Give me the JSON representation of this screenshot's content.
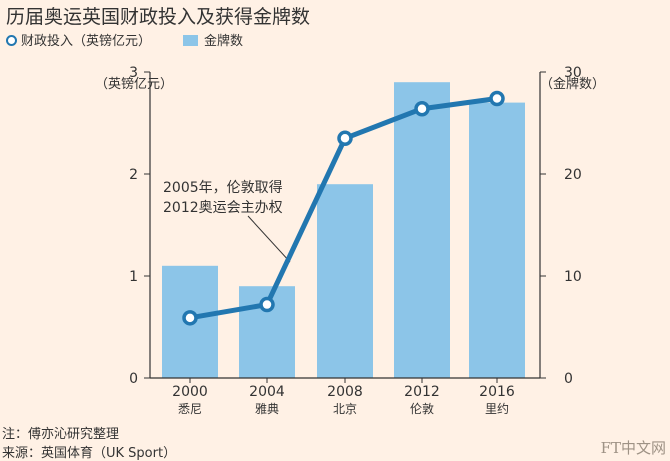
{
  "title": "历届奥运英国财政投入及获得金牌数",
  "legend": {
    "line_label": "财政投入（英镑亿元）",
    "bar_label": "金牌数"
  },
  "annotation": [
    "2005年，伦敦取得",
    "2012奥运会主办权"
  ],
  "note": "注：傅亦沁研究整理",
  "source": "来源：英国体育（UK Sport）",
  "brand": "FT中文网",
  "colors": {
    "background": "#fff1e5",
    "bar": "#8cc5e8",
    "line": "#2277b0",
    "axis": "#333333",
    "text": "#333333"
  },
  "chart_data": {
    "type": "bar+line",
    "categories": [
      {
        "year": "2000",
        "city": "悉尼"
      },
      {
        "year": "2004",
        "city": "雅典"
      },
      {
        "year": "2008",
        "city": "北京"
      },
      {
        "year": "2012",
        "city": "伦敦"
      },
      {
        "year": "2016",
        "city": "里约"
      }
    ],
    "series": [
      {
        "name": "金牌数",
        "kind": "bar",
        "axis": "right",
        "values": [
          11,
          9,
          19,
          29,
          27
        ]
      },
      {
        "name": "财政投入（英镑亿元）",
        "kind": "line",
        "axis": "left",
        "values": [
          0.59,
          0.72,
          2.35,
          2.64,
          2.74
        ]
      }
    ],
    "left_axis": {
      "label": "（英镑亿元）",
      "ticks": [
        0,
        1,
        2,
        3
      ],
      "ylim": [
        0,
        3
      ]
    },
    "right_axis": {
      "label": "（金牌数）",
      "ticks": [
        0,
        10,
        20,
        30
      ],
      "ylim": [
        0,
        30
      ]
    },
    "grid": false
  }
}
